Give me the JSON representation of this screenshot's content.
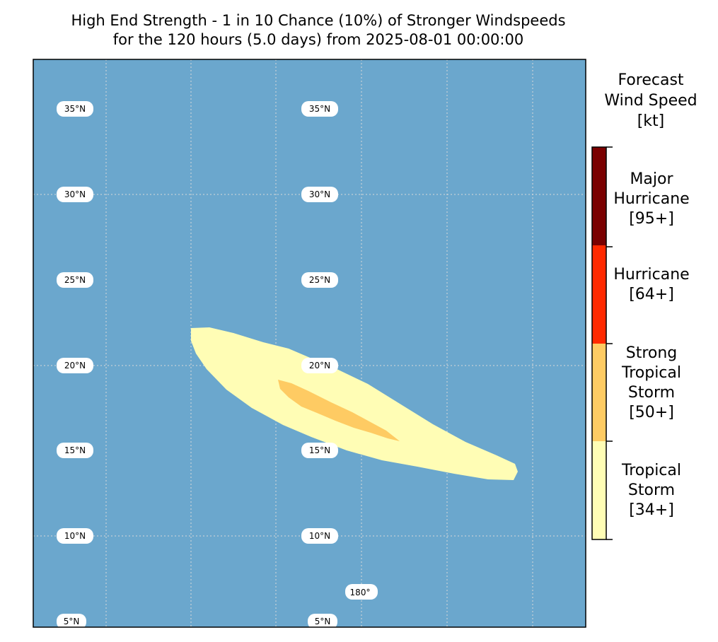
{
  "title": {
    "line1": "High End Strength - 1 in 10 Chance (10%) of Stronger Windspeeds",
    "line2": "for the 120 hours (5.0 days) from 2025-08-01 00:00:00"
  },
  "map": {
    "ocean_color": "#6ba7cd",
    "gridline_color": "#d9d9d9",
    "lat_labels": [
      "35°N",
      "30°N",
      "25°N",
      "20°N",
      "15°N",
      "10°N",
      "5°N"
    ],
    "lon_label": "180°"
  },
  "colorbar": {
    "title": [
      "Forecast",
      "Wind Speed",
      "[kt]"
    ],
    "categories": [
      {
        "label": [
          "Major",
          "Hurricane",
          "[95+]"
        ],
        "color": "#7a0000"
      },
      {
        "label": [
          "Hurricane",
          "[64+]"
        ],
        "color": "#ff2a00"
      },
      {
        "label": [
          "Strong",
          "Tropical",
          "Storm",
          "[50+]"
        ],
        "color": "#fecb63"
      },
      {
        "label": [
          "Tropical",
          "Storm",
          "[34+]"
        ],
        "color": "#fffdb5"
      }
    ]
  }
}
